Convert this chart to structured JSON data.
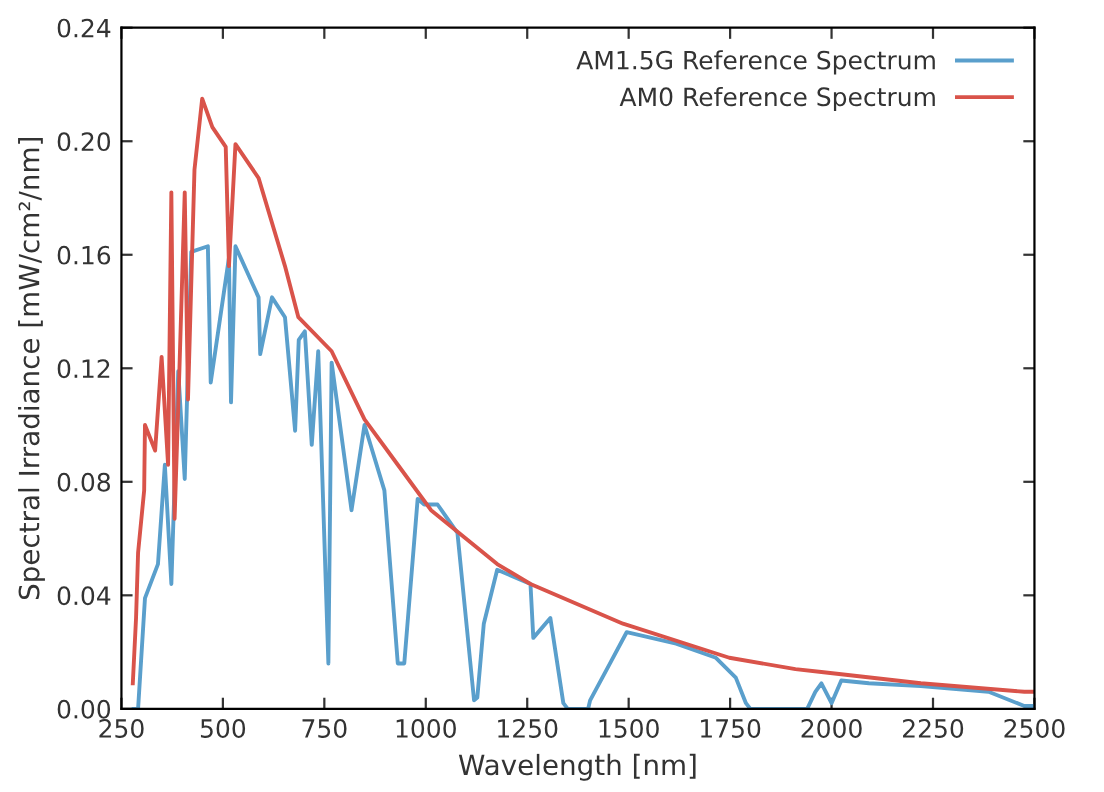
{
  "chart_data": {
    "type": "line",
    "xlabel": "Wavelength [nm]",
    "ylabel": "Spectral Irradiance [mW/cm²/nm]",
    "xlim": [
      250,
      2500
    ],
    "ylim": [
      0,
      0.24
    ],
    "xticks": [
      250,
      500,
      750,
      1000,
      1250,
      1500,
      1750,
      2000,
      2250,
      2500
    ],
    "yticks": [
      {
        "value": 0,
        "label": "0.00"
      },
      {
        "value": 0.04,
        "label": "0.04"
      },
      {
        "value": 0.08,
        "label": "0.08"
      },
      {
        "value": 0.12,
        "label": "0.12"
      },
      {
        "value": 0.16,
        "label": "0.16"
      },
      {
        "value": 0.2,
        "label": "0.20"
      },
      {
        "value": 0.24,
        "label": "0.24"
      }
    ],
    "grid": false,
    "legend": "top right",
    "marker": "none",
    "line_style": "solid",
    "series": [
      {
        "name": "AM1.5G Reference Spectrum",
        "color": "#5a9fcc",
        "x": [
          280,
          291,
          308,
          340,
          357,
          373,
          390,
          406,
          422,
          463,
          470,
          515,
          520,
          531,
          588,
          592,
          621,
          653,
          678,
          687,
          702,
          719,
          735,
          760,
          768,
          817,
          849,
          898,
          931,
          947,
          980,
          996,
          1029,
          1078,
          1119,
          1127,
          1143,
          1176,
          1258,
          1265,
          1307,
          1339,
          1350,
          1400,
          1405,
          1454,
          1495,
          1617,
          1715,
          1764,
          1789,
          1800,
          1940,
          1960,
          1975,
          2000,
          2024,
          2092,
          2220,
          2387,
          2475,
          2500
        ],
        "values": [
          0,
          0,
          0.039,
          0.051,
          0.086,
          0.044,
          0.119,
          0.081,
          0.161,
          0.163,
          0.115,
          0.159,
          0.108,
          0.163,
          0.145,
          0.125,
          0.145,
          0.138,
          0.098,
          0.13,
          0.133,
          0.093,
          0.126,
          0.016,
          0.122,
          0.07,
          0.1,
          0.077,
          0.016,
          0.016,
          0.074,
          0.072,
          0.072,
          0.062,
          0.003,
          0.004,
          0.03,
          0.049,
          0.044,
          0.025,
          0.032,
          0.002,
          0,
          0,
          0.003,
          0.016,
          0.027,
          0.023,
          0.018,
          0.011,
          0.002,
          0,
          0,
          0.006,
          0.009,
          0.002,
          0.01,
          0.009,
          0.008,
          0.006,
          0.001,
          0.001
        ]
      },
      {
        "name": "AM0 Reference Spectrum",
        "color": "#d9534a",
        "x": [
          278,
          286,
          291,
          306,
          308,
          333,
          349,
          365,
          373,
          381,
          393,
          406,
          414,
          430,
          449,
          474,
          507,
          515,
          531,
          588,
          653,
          686,
          768,
          849,
          931,
          1013,
          1176,
          1258,
          1486,
          1748,
          1911,
          1975,
          2220,
          2475,
          2500
        ],
        "values": [
          0.009,
          0.032,
          0.055,
          0.077,
          0.1,
          0.091,
          0.124,
          0.086,
          0.182,
          0.067,
          0.12,
          0.182,
          0.109,
          0.19,
          0.215,
          0.205,
          0.198,
          0.156,
          0.199,
          0.187,
          0.156,
          0.138,
          0.126,
          0.102,
          0.086,
          0.07,
          0.051,
          0.044,
          0.03,
          0.018,
          0.014,
          0.013,
          0.009,
          0.006,
          0.006
        ]
      }
    ]
  }
}
